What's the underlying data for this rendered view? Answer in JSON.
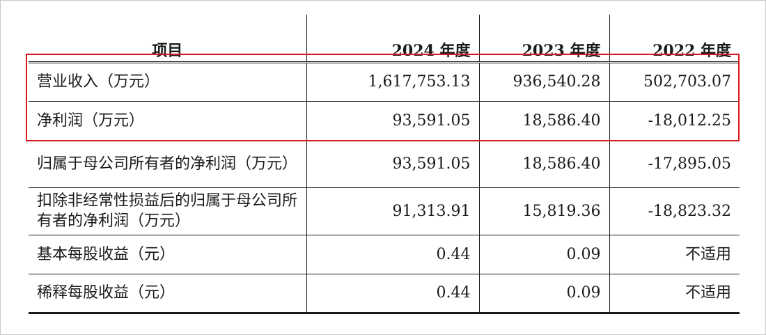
{
  "table": {
    "headers": [
      "项目",
      "2024 年度",
      "2023 年度",
      "2022 年度"
    ],
    "rows": [
      {
        "label": "营业收入（万元）",
        "values": [
          "1,617,753.13",
          "936,540.28",
          "502,703.07"
        ]
      },
      {
        "label": "净利润（万元）",
        "values": [
          "93,591.05",
          "18,586.40",
          "-18,012.25"
        ]
      },
      {
        "label": "归属于母公司所有者的净利润（万元）",
        "values": [
          "93,591.05",
          "18,586.40",
          "-17,895.05"
        ]
      },
      {
        "label": "扣除非经常性损益后的归属于母公司所有者的净利润（万元）",
        "values": [
          "91,313.91",
          "15,819.36",
          "-18,823.32"
        ]
      },
      {
        "label": "基本每股收益（元）",
        "values": [
          "0.44",
          "0.09",
          "不适用"
        ]
      },
      {
        "label": "稀释每股收益（元）",
        "values": [
          "0.44",
          "0.09",
          "不适用"
        ]
      }
    ]
  },
  "highlight": {
    "color": "#d7191c",
    "rows": [
      "营业收入（万元）",
      "净利润（万元）"
    ]
  }
}
